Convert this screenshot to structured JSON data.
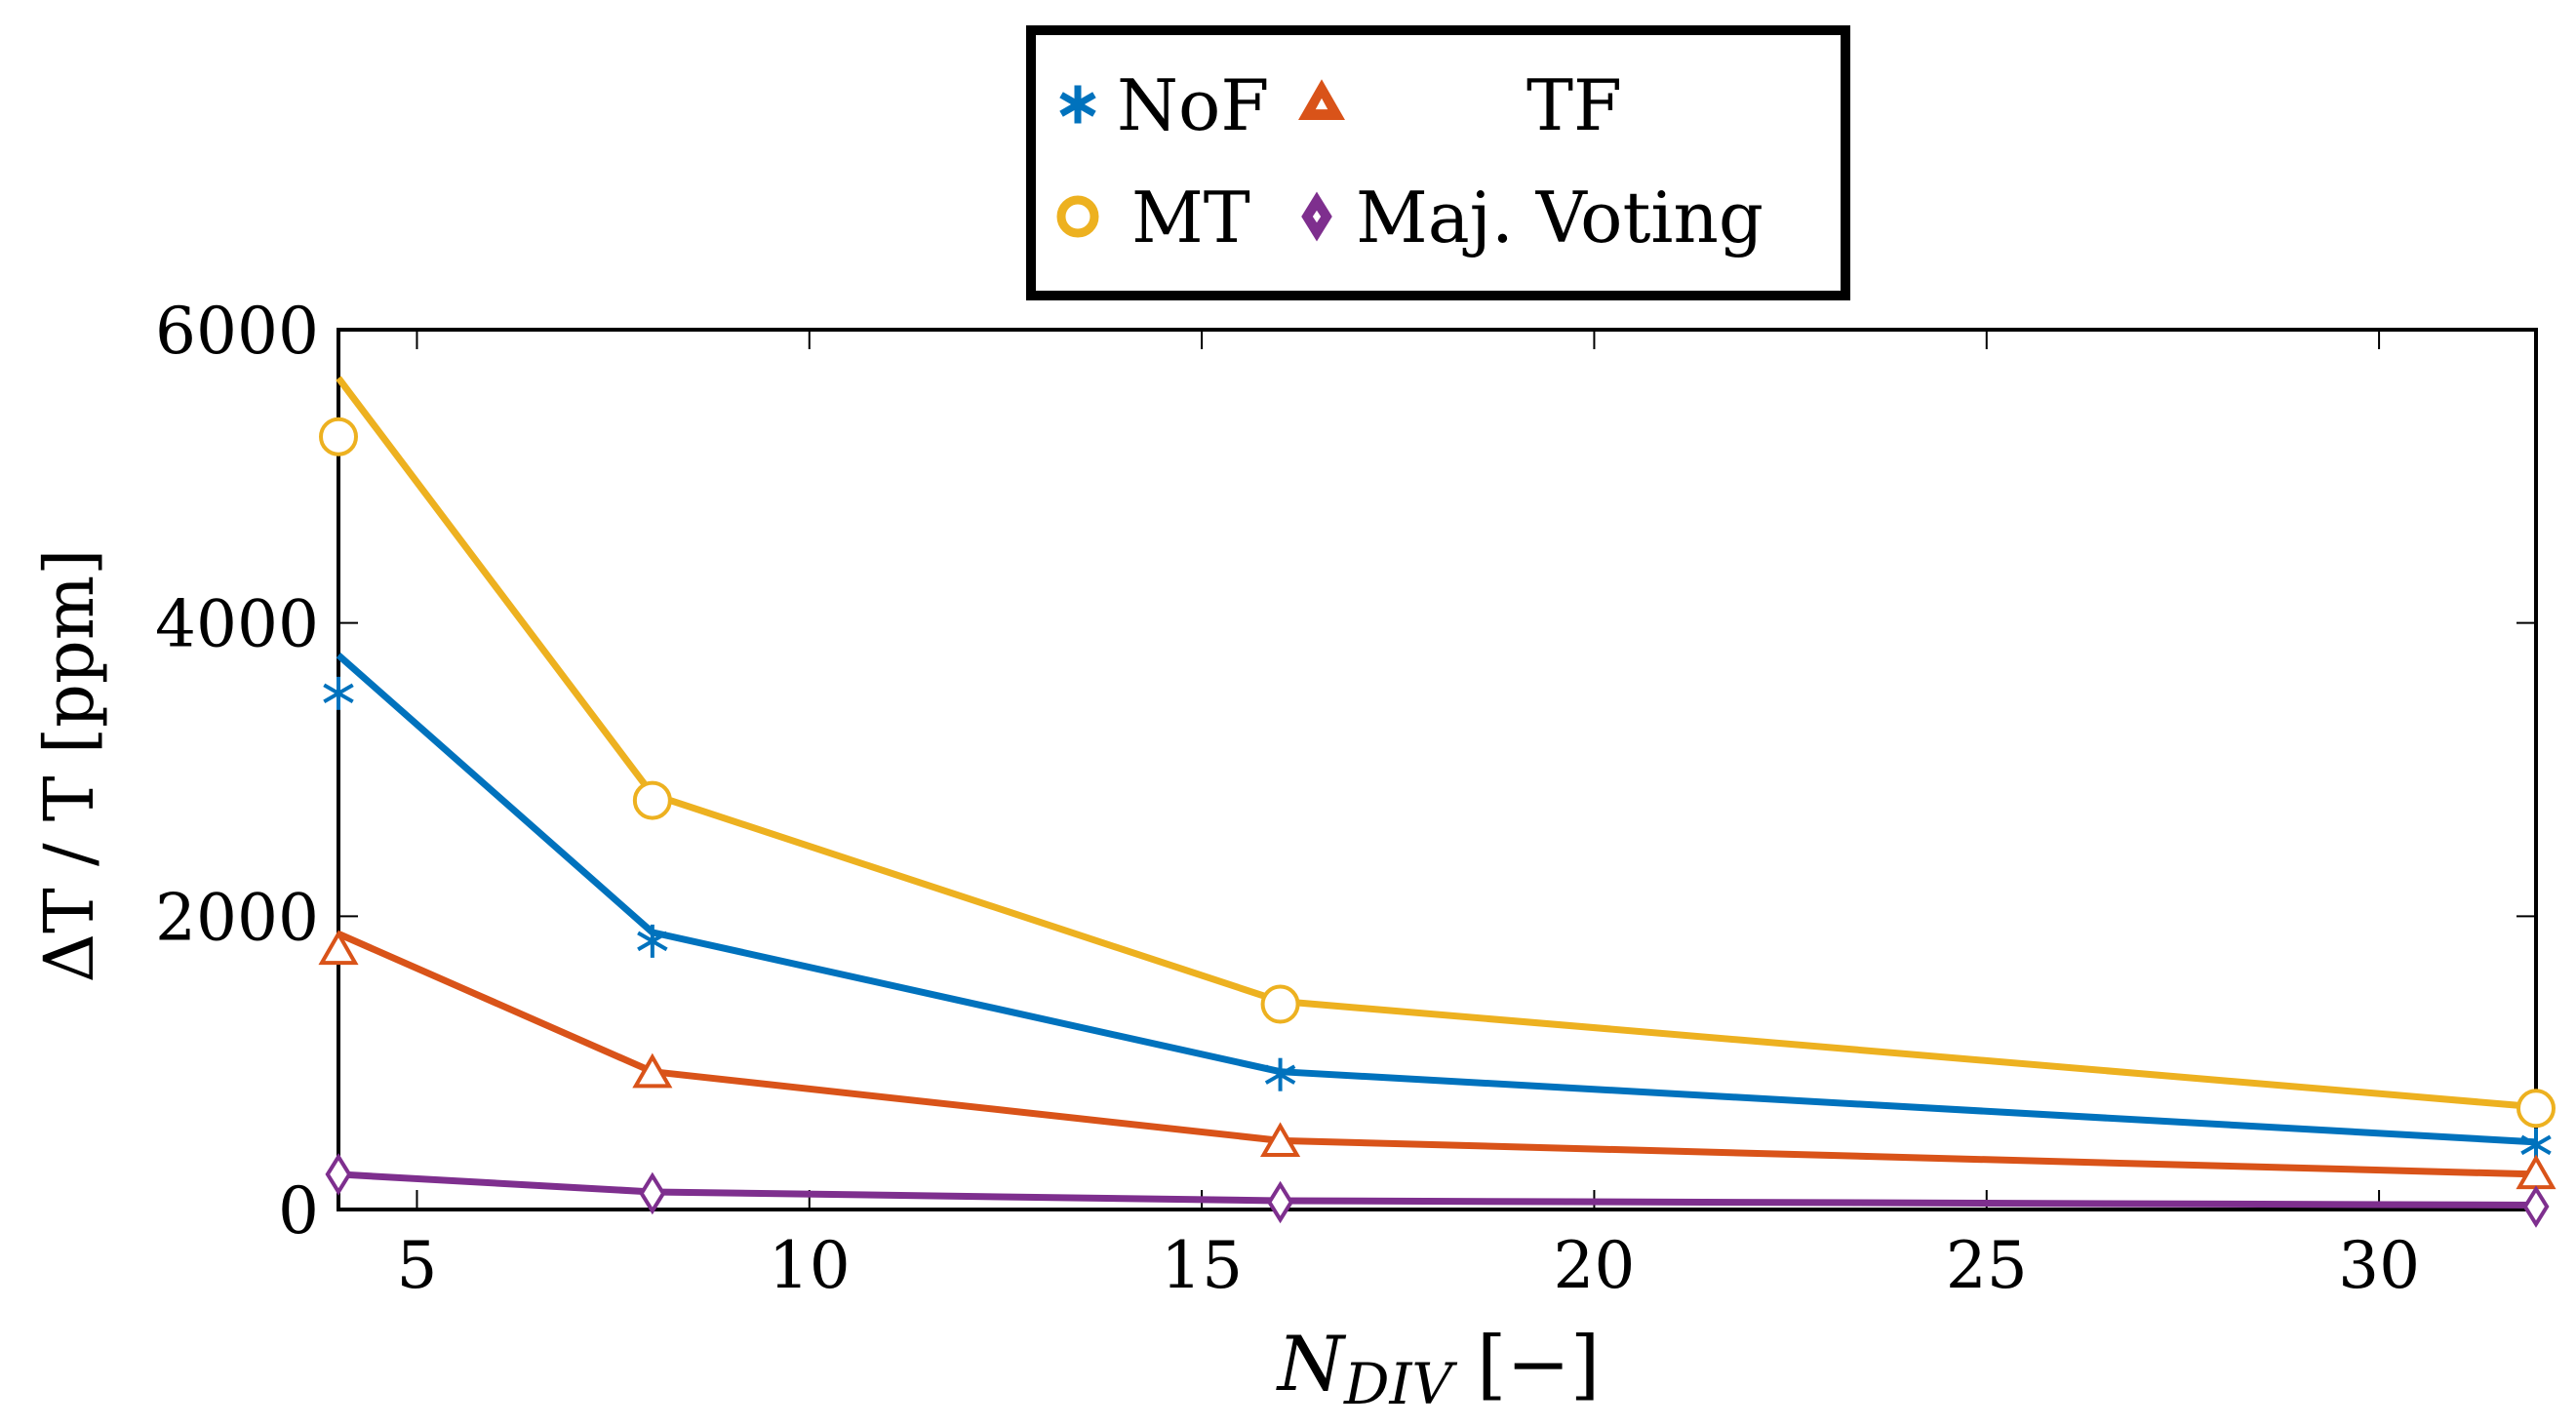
{
  "chart_data": {
    "type": "line",
    "title": "",
    "xlabel": "N_{DIV} [−]",
    "xlabel_main": "N",
    "xlabel_sub": "DIV",
    "xlabel_unit": " [−]",
    "ylabel": "ΔT / T [ppm]",
    "xlim": [
      4,
      32
    ],
    "ylim": [
      0,
      6000
    ],
    "x_ticks": [
      5,
      10,
      15,
      20,
      25,
      30
    ],
    "y_ticks": [
      0,
      2000,
      4000,
      6000
    ],
    "grid": false,
    "legend_position": "top-center",
    "series": [
      {
        "name": "NoF",
        "color": "#0072BD",
        "marker": "asterisk",
        "line_x": [
          4,
          8,
          16,
          32
        ],
        "line_y": [
          3780,
          1890,
          940,
          460
        ],
        "marker_x": [
          4,
          8,
          16,
          32
        ],
        "marker_y": [
          3520,
          1830,
          920,
          440
        ]
      },
      {
        "name": "TF",
        "color": "#D95319",
        "marker": "triangle",
        "line_x": [
          4,
          8,
          16,
          32
        ],
        "line_y": [
          1880,
          940,
          470,
          240
        ],
        "marker_x": [
          4,
          8,
          16,
          32
        ],
        "marker_y": [
          1760,
          920,
          450,
          230
        ]
      },
      {
        "name": "MT",
        "color": "#EDB120",
        "marker": "circle",
        "line_x": [
          4,
          8,
          16,
          32
        ],
        "line_y": [
          5670,
          2830,
          1420,
          700
        ],
        "marker_x": [
          4,
          8,
          16,
          32
        ],
        "marker_y": [
          5270,
          2790,
          1400,
          690
        ]
      },
      {
        "name": "Maj. Voting",
        "color": "#7E2F8E",
        "marker": "diamond",
        "line_x": [
          4,
          8,
          16,
          32
        ],
        "line_y": [
          240,
          120,
          60,
          30
        ],
        "marker_x": [
          4,
          8,
          16,
          32
        ],
        "marker_y": [
          240,
          110,
          50,
          20
        ]
      }
    ]
  }
}
